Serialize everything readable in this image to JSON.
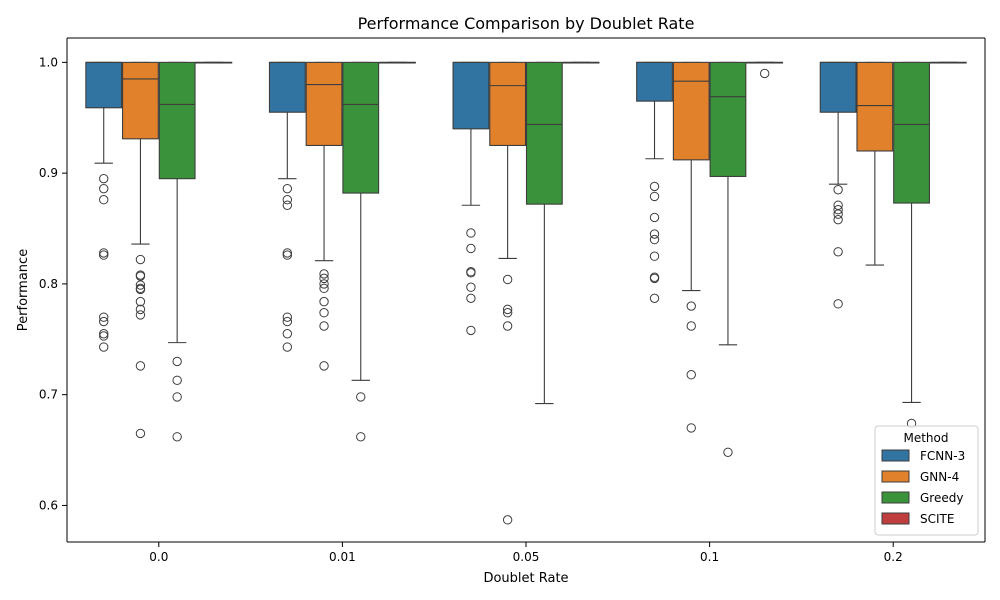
{
  "chart_data": {
    "type": "box",
    "title": "Performance Comparison by Doublet Rate",
    "xlabel": "Doublet Rate",
    "ylabel": "Performance",
    "ylim": [
      0.567,
      1.022
    ],
    "yticks": [
      "0.6",
      "0.7",
      "0.8",
      "0.9",
      "1.0"
    ],
    "ytick_values": [
      0.6,
      0.7,
      0.8,
      0.9,
      1.0
    ],
    "categories": [
      "0.0",
      "0.01",
      "0.05",
      "0.1",
      "0.2"
    ],
    "grid": false,
    "legend": {
      "title": "Method",
      "position": "lower-right",
      "entries": [
        "FCNN-3",
        "GNN-4",
        "Greedy",
        "SCITE"
      ]
    },
    "series": [
      {
        "name": "FCNN-3",
        "color": "#3274a1",
        "boxes": [
          {
            "q1": 0.959,
            "median": 1.0,
            "q3": 1.0,
            "whisker_low": 0.909,
            "whisker_high": 1.0,
            "outliers": [
              0.895,
              0.886,
              0.876,
              0.828,
              0.826,
              0.77,
              0.766,
              0.755,
              0.753,
              0.743
            ]
          },
          {
            "q1": 0.955,
            "median": 1.0,
            "q3": 1.0,
            "whisker_low": 0.895,
            "whisker_high": 1.0,
            "outliers": [
              0.886,
              0.876,
              0.871,
              0.828,
              0.826,
              0.77,
              0.766,
              0.755,
              0.743
            ]
          },
          {
            "q1": 0.94,
            "median": 1.0,
            "q3": 1.0,
            "whisker_low": 0.871,
            "whisker_high": 1.0,
            "outliers": [
              0.846,
              0.832,
              0.811,
              0.81,
              0.797,
              0.787,
              0.758
            ]
          },
          {
            "q1": 0.965,
            "median": 1.0,
            "q3": 1.0,
            "whisker_low": 0.913,
            "whisker_high": 1.0,
            "outliers": [
              0.888,
              0.879,
              0.86,
              0.845,
              0.84,
              0.825,
              0.806,
              0.805,
              0.787
            ]
          },
          {
            "q1": 0.955,
            "median": 1.0,
            "q3": 1.0,
            "whisker_low": 0.89,
            "whisker_high": 1.0,
            "outliers": [
              0.885,
              0.871,
              0.867,
              0.863,
              0.858,
              0.829,
              0.782
            ]
          }
        ]
      },
      {
        "name": "GNN-4",
        "color": "#e1812c",
        "boxes": [
          {
            "q1": 0.931,
            "median": 0.985,
            "q3": 1.0,
            "whisker_low": 0.836,
            "whisker_high": 1.0,
            "outliers": [
              0.822,
              0.808,
              0.807,
              0.799,
              0.796,
              0.795,
              0.784,
              0.777,
              0.772,
              0.726,
              0.665
            ]
          },
          {
            "q1": 0.925,
            "median": 0.98,
            "q3": 1.0,
            "whisker_low": 0.821,
            "whisker_high": 1.0,
            "outliers": [
              0.809,
              0.805,
              0.8,
              0.796,
              0.784,
              0.774,
              0.762,
              0.726
            ]
          },
          {
            "q1": 0.925,
            "median": 0.979,
            "q3": 1.0,
            "whisker_low": 0.823,
            "whisker_high": 1.0,
            "outliers": [
              0.804,
              0.777,
              0.774,
              0.762,
              0.587
            ]
          },
          {
            "q1": 0.912,
            "median": 0.983,
            "q3": 1.0,
            "whisker_low": 0.794,
            "whisker_high": 1.0,
            "outliers": [
              0.78,
              0.762,
              0.718,
              0.67
            ]
          },
          {
            "q1": 0.92,
            "median": 0.961,
            "q3": 1.0,
            "whisker_low": 0.817,
            "whisker_high": 1.0,
            "outliers": []
          }
        ]
      },
      {
        "name": "Greedy",
        "color": "#3a923a",
        "boxes": [
          {
            "q1": 0.895,
            "median": 0.962,
            "q3": 1.0,
            "whisker_low": 0.747,
            "whisker_high": 1.0,
            "outliers": [
              0.73,
              0.713,
              0.698,
              0.662
            ]
          },
          {
            "q1": 0.882,
            "median": 0.962,
            "q3": 1.0,
            "whisker_low": 0.713,
            "whisker_high": 1.0,
            "outliers": [
              0.698,
              0.662
            ]
          },
          {
            "q1": 0.872,
            "median": 0.944,
            "q3": 1.0,
            "whisker_low": 0.692,
            "whisker_high": 1.0,
            "outliers": []
          },
          {
            "q1": 0.897,
            "median": 0.969,
            "q3": 1.0,
            "whisker_low": 0.745,
            "whisker_high": 1.0,
            "outliers": [
              0.648
            ]
          },
          {
            "q1": 0.873,
            "median": 0.944,
            "q3": 1.0,
            "whisker_low": 0.693,
            "whisker_high": 1.0,
            "outliers": [
              0.674
            ]
          }
        ]
      },
      {
        "name": "SCITE",
        "color": "#c03d3e",
        "boxes": [
          {
            "q1": 1.0,
            "median": 1.0,
            "q3": 1.0,
            "whisker_low": 1.0,
            "whisker_high": 1.0,
            "outliers": []
          },
          {
            "q1": 1.0,
            "median": 1.0,
            "q3": 1.0,
            "whisker_low": 1.0,
            "whisker_high": 1.0,
            "outliers": []
          },
          {
            "q1": 1.0,
            "median": 1.0,
            "q3": 1.0,
            "whisker_low": 1.0,
            "whisker_high": 1.0,
            "outliers": []
          },
          {
            "q1": 1.0,
            "median": 1.0,
            "q3": 1.0,
            "whisker_low": 1.0,
            "whisker_high": 1.0,
            "outliers": [
              0.99
            ]
          },
          {
            "q1": 1.0,
            "median": 1.0,
            "q3": 1.0,
            "whisker_low": 1.0,
            "whisker_high": 1.0,
            "outliers": []
          }
        ]
      }
    ]
  }
}
